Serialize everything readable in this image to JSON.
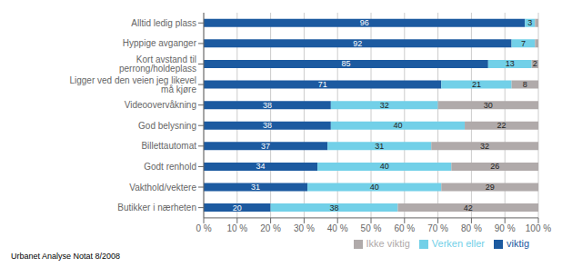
{
  "chart_data": {
    "type": "bar",
    "orientation": "horizontal",
    "stacked": true,
    "grid": true,
    "legend": "lower right",
    "categories": [
      "Alltid ledig plass",
      "Hyppige avganger",
      "Kort avstand til perrong/holdeplass",
      "Ligger ved den veien jeg likevel må kjøre",
      "Videoovervåkning",
      "God belysning",
      "Billettautomat",
      "Godt renhold",
      "Vakthold/vektere",
      "Butikker i nærheten"
    ],
    "series": [
      {
        "name": "viktig",
        "color": "#1c5aa0",
        "values": [
          96,
          92,
          85,
          71,
          38,
          38,
          37,
          34,
          31,
          20
        ],
        "value_labels": [
          "96",
          "92",
          "85",
          "71",
          "38",
          "38",
          "37",
          "34",
          "31",
          "20"
        ]
      },
      {
        "name": "Verken eller",
        "color": "#72d0e8",
        "values": [
          3,
          7,
          13,
          21,
          32,
          40,
          31,
          40,
          40,
          38
        ],
        "value_labels": [
          "3",
          "7",
          "13",
          "21",
          "32",
          "40",
          "31",
          "40",
          "40",
          "38"
        ]
      },
      {
        "name": "Ikke viktig",
        "color": "#b0aaaa",
        "values": [
          1,
          1,
          2,
          8,
          30,
          22,
          32,
          26,
          29,
          42
        ],
        "value_labels": [
          null,
          null,
          "2",
          "8",
          "30",
          "22",
          "32",
          "26",
          "29",
          "42"
        ]
      }
    ],
    "xlim": [
      0,
      100
    ],
    "xticks": [
      {
        "value": 0,
        "label": "0 %"
      },
      {
        "value": 10,
        "label": "10 %"
      },
      {
        "value": 20,
        "label": "20 %"
      },
      {
        "value": 30,
        "label": "30 %"
      },
      {
        "value": 40,
        "label": "40 %"
      },
      {
        "value": 50,
        "label": "50 %"
      },
      {
        "value": 60,
        "label": "60 %"
      },
      {
        "value": 70,
        "label": "70 %"
      },
      {
        "value": 80,
        "label": "80 %"
      },
      {
        "value": 90,
        "label": "90 %"
      },
      {
        "value": 100,
        "label": "100 %"
      }
    ],
    "annotations": [
      "Urbanet Analyse Notat 8/2008"
    ]
  }
}
